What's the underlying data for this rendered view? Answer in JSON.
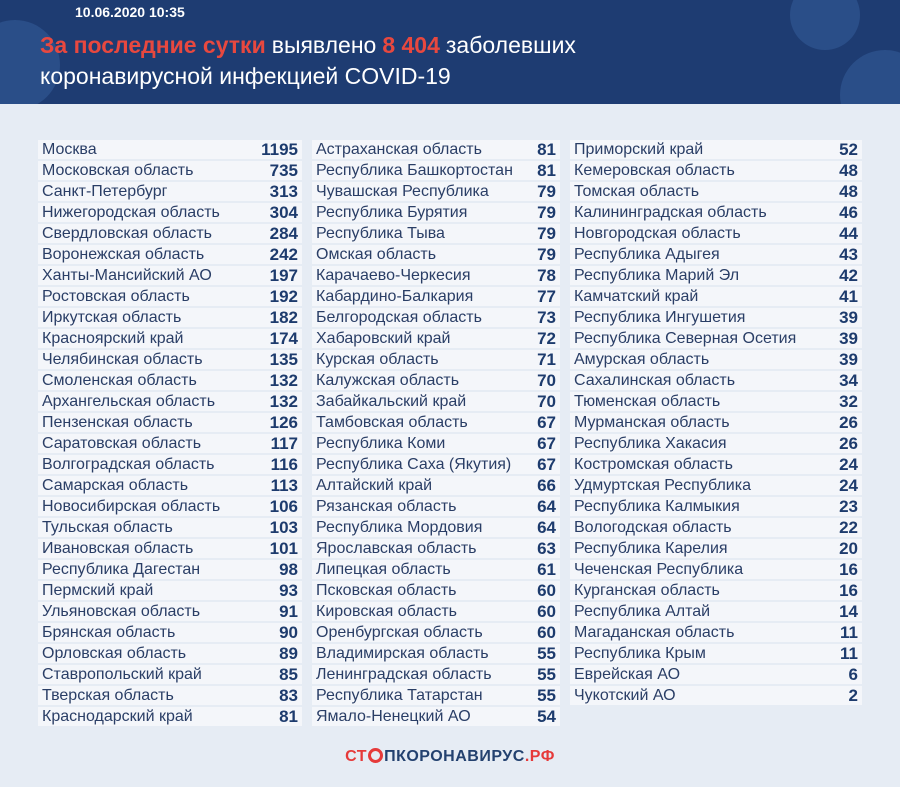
{
  "header": {
    "date": "10.06.2020 10:35",
    "title": [
      [
        {
          "text": "За последние сутки",
          "accent": true
        },
        {
          "text": "выявлено",
          "accent": false
        },
        {
          "text": "8 404",
          "accent": true
        },
        {
          "text": "заболевших",
          "accent": false
        }
      ],
      [
        {
          "text": "коронавирусной инфекцией COVID-19",
          "accent": false
        }
      ]
    ],
    "accent_color": "#e8483f",
    "text_color": "#ffffff"
  },
  "table": {
    "columns": [
      [
        [
          "Москва",
          1195
        ],
        [
          "Московская область",
          735
        ],
        [
          "Санкт-Петербург",
          313
        ],
        [
          "Нижегородская область",
          304
        ],
        [
          "Свердловская область",
          284
        ],
        [
          "Воронежская область",
          242
        ],
        [
          "Ханты-Мансийский АО",
          197
        ],
        [
          "Ростовская область",
          192
        ],
        [
          "Иркутская область",
          182
        ],
        [
          "Красноярский край",
          174
        ],
        [
          "Челябинская область",
          135
        ],
        [
          "Смоленская область",
          132
        ],
        [
          "Архангельская область",
          132
        ],
        [
          "Пензенская область",
          126
        ],
        [
          "Саратовская область",
          117
        ],
        [
          "Волгоградская область",
          116
        ],
        [
          "Самарская область",
          113
        ],
        [
          "Новосибирская область",
          106
        ],
        [
          "Тульская область",
          103
        ],
        [
          "Ивановская область",
          101
        ],
        [
          "Республика Дагестан",
          98
        ],
        [
          "Пермский край",
          93
        ],
        [
          "Ульяновская область",
          91
        ],
        [
          "Брянская область",
          90
        ],
        [
          "Орловская область",
          89
        ],
        [
          "Ставропольский край",
          85
        ],
        [
          "Тверская область",
          83
        ],
        [
          "Краснодарский край",
          81
        ]
      ],
      [
        [
          "Астраханская область",
          81
        ],
        [
          "Республика Башкортостан",
          81
        ],
        [
          "Чувашская Республика",
          79
        ],
        [
          "Республика Бурятия",
          79
        ],
        [
          "Республика Тыва",
          79
        ],
        [
          "Омская область",
          79
        ],
        [
          "Карачаево-Черкесия",
          78
        ],
        [
          "Кабардино-Балкария",
          77
        ],
        [
          "Белгородская область",
          73
        ],
        [
          "Хабаровский край",
          72
        ],
        [
          "Курская область",
          71
        ],
        [
          "Калужская область",
          70
        ],
        [
          "Забайкальский край",
          70
        ],
        [
          "Тамбовская область",
          67
        ],
        [
          "Республика Коми",
          67
        ],
        [
          "Республика Саха (Якутия)",
          67
        ],
        [
          "Алтайский край",
          66
        ],
        [
          "Рязанская область",
          64
        ],
        [
          "Республика Мордовия",
          64
        ],
        [
          "Ярославская область",
          63
        ],
        [
          "Липецкая область",
          61
        ],
        [
          "Псковская область",
          60
        ],
        [
          "Кировская область",
          60
        ],
        [
          "Оренбургская область",
          60
        ],
        [
          "Владимирская область",
          55
        ],
        [
          "Ленинградская область",
          55
        ],
        [
          "Республика Татарстан",
          55
        ],
        [
          "Ямало-Ненецкий АО",
          54
        ]
      ],
      [
        [
          "Приморский край",
          52
        ],
        [
          "Кемеровская область",
          48
        ],
        [
          "Томская область",
          48
        ],
        [
          "Калининградская область",
          46
        ],
        [
          "Новгородская область",
          44
        ],
        [
          "Республика Адыгея",
          43
        ],
        [
          "Республика Марий Эл",
          42
        ],
        [
          "Камчатский край",
          41
        ],
        [
          "Республика Ингушетия",
          39
        ],
        [
          "Республика Северная Осетия",
          39
        ],
        [
          "Амурская область",
          39
        ],
        [
          "Сахалинская область",
          34
        ],
        [
          "Тюменская область",
          32
        ],
        [
          "Мурманская область",
          26
        ],
        [
          "Республика Хакасия",
          26
        ],
        [
          "Костромская область",
          24
        ],
        [
          "Удмуртская Республика",
          24
        ],
        [
          "Республика Калмыкия",
          23
        ],
        [
          "Вологодская область",
          22
        ],
        [
          "Республика Карелия",
          20
        ],
        [
          "Чеченская Республика",
          16
        ],
        [
          "Курганская область",
          16
        ],
        [
          "Республика Алтай",
          14
        ],
        [
          "Магаданская область",
          11
        ],
        [
          "Республика Крым",
          11
        ],
        [
          "Еврейская АО",
          6
        ],
        [
          "Чукотский АО",
          2
        ]
      ]
    ]
  },
  "footer": {
    "logo": [
      "СТ",
      "ПКОРОНАВИРУС",
      ".РФ"
    ]
  }
}
